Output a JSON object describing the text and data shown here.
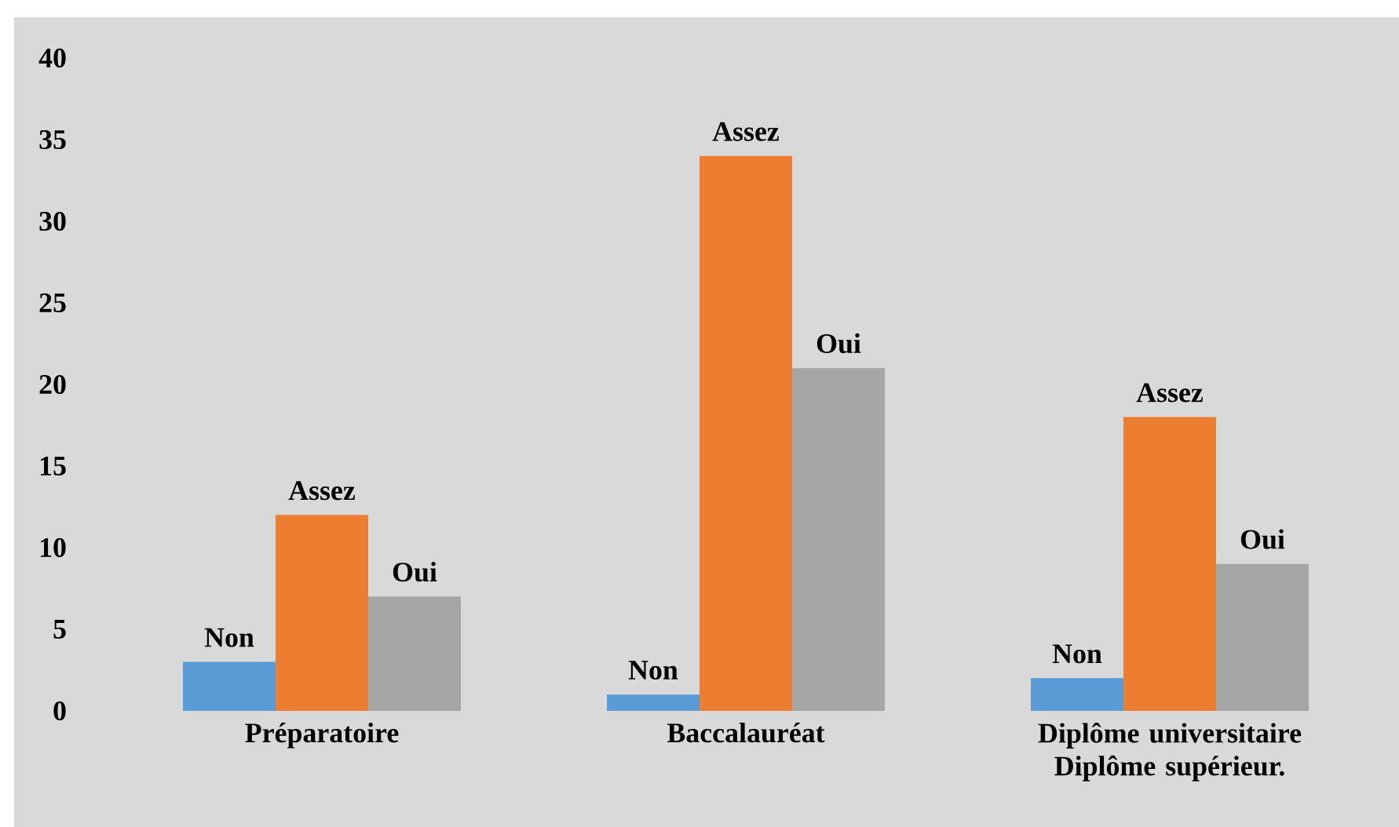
{
  "chart_data": {
    "type": "bar",
    "categories": [
      "Préparatoire",
      "Baccalauréat",
      "Diplôme universitaire Diplôme supérieur."
    ],
    "series": [
      {
        "name": "Non",
        "color": "#5b9bd5",
        "values": [
          3,
          1,
          2
        ]
      },
      {
        "name": "Assez",
        "color": "#ed7d31",
        "values": [
          12,
          34,
          18
        ]
      },
      {
        "name": "Oui",
        "color": "#a5a5a5",
        "values": [
          7,
          21,
          9
        ]
      }
    ],
    "ylim": [
      0,
      40
    ],
    "yticks": [
      0,
      5,
      10,
      15,
      20,
      25,
      30,
      35,
      40
    ]
  }
}
